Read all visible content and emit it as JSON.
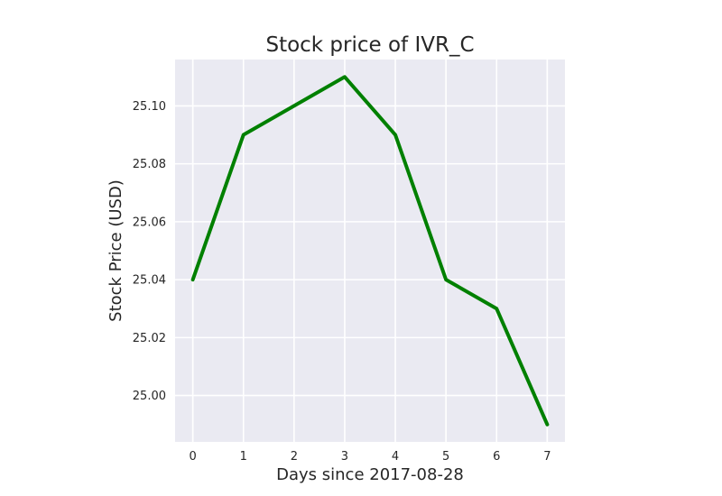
{
  "chart_data": {
    "type": "line",
    "title": "Stock price of IVR_C",
    "xlabel": "Days since 2017-08-28",
    "ylabel": "Stock Price (USD)",
    "x": [
      0,
      1,
      2,
      3,
      4,
      5,
      6,
      7
    ],
    "x_tick_labels": [
      "0",
      "1",
      "2",
      "3",
      "4",
      "5",
      "6",
      "7"
    ],
    "y_tick_labels": [
      "25.00",
      "25.02",
      "25.04",
      "25.06",
      "25.08",
      "25.10"
    ],
    "y_ticks": [
      25.0,
      25.02,
      25.04,
      25.06,
      25.08,
      25.1
    ],
    "series": [
      {
        "values": [
          25.04,
          25.09,
          25.1,
          25.11,
          25.09,
          25.04,
          25.03,
          24.99
        ],
        "color": "#008000"
      }
    ],
    "xlim": [
      -0.35,
      7.35
    ],
    "ylim": [
      24.984,
      25.116
    ],
    "grid": true,
    "style": {
      "plot_background": "#eaeaf2",
      "grid_color": "#ffffff",
      "text_color": "#262626"
    }
  }
}
